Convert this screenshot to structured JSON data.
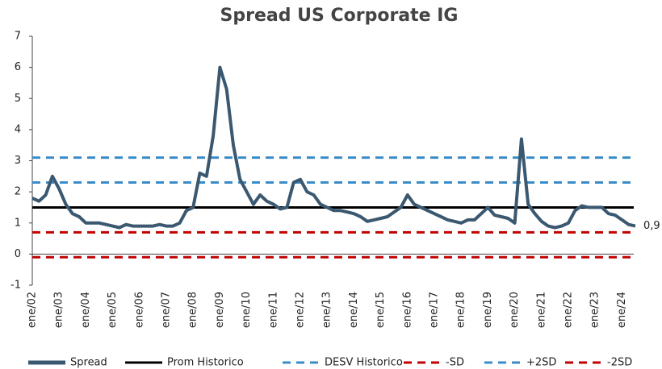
{
  "chart_data": {
    "type": "line",
    "title": "Spread US Corporate IG",
    "categories": [
      "ene/02",
      null,
      null,
      null,
      "ene/03",
      null,
      null,
      null,
      "ene/04",
      null,
      null,
      null,
      "ene/05",
      null,
      null,
      null,
      "ene/06",
      null,
      null,
      null,
      "ene/07",
      null,
      null,
      null,
      "ene/08",
      null,
      null,
      null,
      "ene/09",
      null,
      null,
      null,
      "ene/10",
      null,
      null,
      null,
      "ene/11",
      null,
      null,
      null,
      "ene/12",
      null,
      null,
      null,
      "ene/13",
      null,
      null,
      null,
      "ene/14",
      null,
      null,
      null,
      "ene/15",
      null,
      null,
      null,
      "ene/16",
      null,
      null,
      null,
      "ene/17",
      null,
      null,
      null,
      "ene/18",
      null,
      null,
      null,
      "ene/19",
      null,
      null,
      null,
      "ene/20",
      null,
      null,
      null,
      "ene/21",
      null,
      null,
      null,
      "ene/22",
      null,
      null,
      null,
      "ene/23",
      null,
      null,
      null,
      "ene/24",
      null,
      null
    ],
    "series": [
      {
        "name": "Spread",
        "color": "#3a5870",
        "values": [
          1.8,
          1.7,
          1.9,
          2.5,
          2.1,
          1.6,
          1.3,
          1.2,
          1.0,
          1.0,
          1.0,
          0.95,
          0.9,
          0.85,
          0.95,
          0.9,
          0.9,
          0.9,
          0.9,
          0.95,
          0.9,
          0.9,
          1.0,
          1.4,
          1.5,
          2.6,
          2.5,
          3.8,
          6.0,
          5.3,
          3.5,
          2.4,
          2.0,
          1.6,
          1.9,
          1.7,
          1.6,
          1.45,
          1.5,
          2.3,
          2.4,
          2.0,
          1.9,
          1.6,
          1.5,
          1.4,
          1.4,
          1.35,
          1.3,
          1.2,
          1.05,
          1.1,
          1.15,
          1.2,
          1.35,
          1.5,
          1.9,
          1.6,
          1.5,
          1.4,
          1.3,
          1.2,
          1.1,
          1.05,
          1.0,
          1.1,
          1.1,
          1.3,
          1.5,
          1.25,
          1.2,
          1.15,
          1.0,
          3.7,
          1.6,
          1.3,
          1.05,
          0.9,
          0.85,
          0.9,
          1.0,
          1.4,
          1.55,
          1.5,
          1.5,
          1.5,
          1.3,
          1.25,
          1.1,
          0.95,
          0.9
        ]
      }
    ],
    "hlines": [
      {
        "name": "Prom Historico",
        "color": "#000000",
        "value": 1.5,
        "dashed": false
      },
      {
        "name": "DESV Historico",
        "color": "#3a8cc8",
        "value": 2.3,
        "dashed": true
      },
      {
        "name": "-SD",
        "color": "#c00000",
        "value": 0.7,
        "dashed": true
      },
      {
        "name": "+2SD",
        "color": "#3a8cc8",
        "value": 3.1,
        "dashed": true
      },
      {
        "name": "-2SD",
        "color": "#c00000",
        "value": -0.1,
        "dashed": true
      }
    ],
    "end_label": {
      "value": 0.9,
      "label": "0,9"
    },
    "ylim": [
      -1,
      7
    ],
    "yticks": [
      -1,
      0,
      1,
      2,
      3,
      4,
      5,
      6,
      7
    ]
  }
}
